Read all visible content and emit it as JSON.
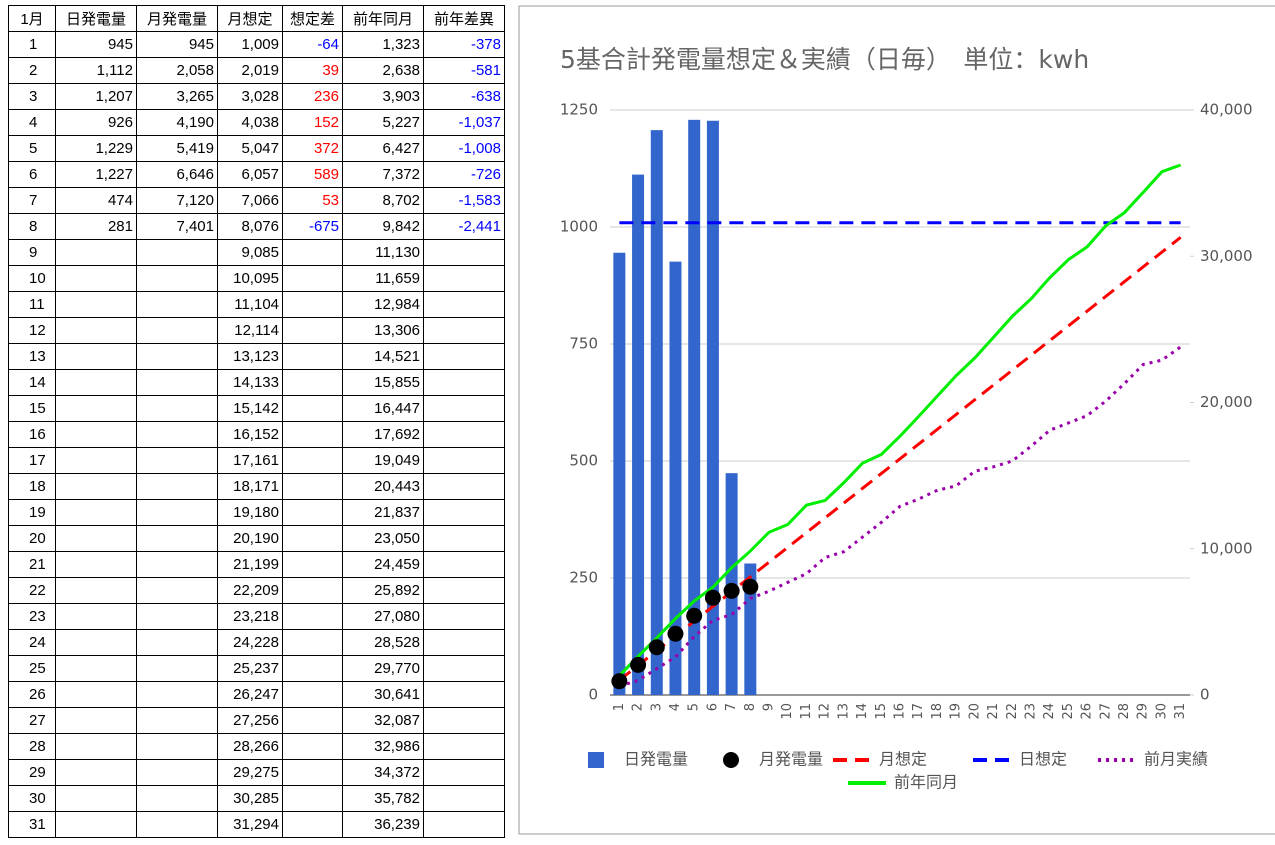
{
  "table": {
    "header": [
      "1月",
      "日発電量",
      "月発電量",
      "月想定",
      "想定差",
      "前年同月",
      "前年差異"
    ],
    "rows": [
      {
        "day": "1",
        "daily": "945",
        "monthly": "945",
        "plan": "1,009",
        "diff": "-64",
        "prev": "1,323",
        "prevdiff": "-378"
      },
      {
        "day": "2",
        "daily": "1,112",
        "monthly": "2,058",
        "plan": "2,019",
        "diff": "39",
        "prev": "2,638",
        "prevdiff": "-581"
      },
      {
        "day": "3",
        "daily": "1,207",
        "monthly": "3,265",
        "plan": "3,028",
        "diff": "236",
        "prev": "3,903",
        "prevdiff": "-638"
      },
      {
        "day": "4",
        "daily": "926",
        "monthly": "4,190",
        "plan": "4,038",
        "diff": "152",
        "prev": "5,227",
        "prevdiff": "-1,037"
      },
      {
        "day": "5",
        "daily": "1,229",
        "monthly": "5,419",
        "plan": "5,047",
        "diff": "372",
        "prev": "6,427",
        "prevdiff": "-1,008"
      },
      {
        "day": "6",
        "daily": "1,227",
        "monthly": "6,646",
        "plan": "6,057",
        "diff": "589",
        "prev": "7,372",
        "prevdiff": "-726"
      },
      {
        "day": "7",
        "daily": "474",
        "monthly": "7,120",
        "plan": "7,066",
        "diff": "53",
        "prev": "8,702",
        "prevdiff": "-1,583"
      },
      {
        "day": "8",
        "daily": "281",
        "monthly": "7,401",
        "plan": "8,076",
        "diff": "-675",
        "prev": "9,842",
        "prevdiff": "-2,441"
      },
      {
        "day": "9",
        "plan": "9,085",
        "prev": "11,130"
      },
      {
        "day": "10",
        "plan": "10,095",
        "prev": "11,659"
      },
      {
        "day": "11",
        "plan": "11,104",
        "prev": "12,984"
      },
      {
        "day": "12",
        "plan": "12,114",
        "prev": "13,306"
      },
      {
        "day": "13",
        "plan": "13,123",
        "prev": "14,521"
      },
      {
        "day": "14",
        "plan": "14,133",
        "prev": "15,855"
      },
      {
        "day": "15",
        "plan": "15,142",
        "prev": "16,447"
      },
      {
        "day": "16",
        "plan": "16,152",
        "prev": "17,692"
      },
      {
        "day": "17",
        "plan": "17,161",
        "prev": "19,049"
      },
      {
        "day": "18",
        "plan": "18,171",
        "prev": "20,443"
      },
      {
        "day": "19",
        "plan": "19,180",
        "prev": "21,837"
      },
      {
        "day": "20",
        "plan": "20,190",
        "prev": "23,050"
      },
      {
        "day": "21",
        "plan": "21,199",
        "prev": "24,459"
      },
      {
        "day": "22",
        "plan": "22,209",
        "prev": "25,892"
      },
      {
        "day": "23",
        "plan": "23,218",
        "prev": "27,080"
      },
      {
        "day": "24",
        "plan": "24,228",
        "prev": "28,528"
      },
      {
        "day": "25",
        "plan": "25,237",
        "prev": "29,770"
      },
      {
        "day": "26",
        "plan": "26,247",
        "prev": "30,641"
      },
      {
        "day": "27",
        "plan": "27,256",
        "prev": "32,087"
      },
      {
        "day": "28",
        "plan": "28,266",
        "prev": "32,986"
      },
      {
        "day": "29",
        "plan": "29,275",
        "prev": "34,372"
      },
      {
        "day": "30",
        "plan": "30,285",
        "prev": "35,782"
      },
      {
        "day": "31",
        "plan": "31,294",
        "prev": "36,239"
      }
    ]
  },
  "chart_data": {
    "type": "combo",
    "title": "5基合計発電量想定＆実績（日毎）　単位：kwh",
    "categories": [
      1,
      2,
      3,
      4,
      5,
      6,
      7,
      8,
      9,
      10,
      11,
      12,
      13,
      14,
      15,
      16,
      17,
      18,
      19,
      20,
      21,
      22,
      23,
      24,
      25,
      26,
      27,
      28,
      29,
      30,
      31
    ],
    "ylim": [
      0,
      1250
    ],
    "yticks": [
      0,
      250,
      500,
      750,
      1000,
      1250
    ],
    "y2lim": [
      0,
      40000
    ],
    "y2ticks": [
      0,
      {
        "value": 10000,
        "label": "10,000"
      },
      {
        "value": 20000,
        "label": "20,000"
      },
      {
        "value": 30000,
        "label": "30,000"
      },
      {
        "value": 40000,
        "label": "40,000"
      }
    ],
    "grid": true,
    "series": [
      {
        "name": "日発電量",
        "type": "bar",
        "color": "#3366cc",
        "values": [
          945,
          1112,
          1207,
          926,
          1229,
          1227,
          474,
          281,
          null,
          null,
          null,
          null,
          null,
          null,
          null,
          null,
          null,
          null,
          null,
          null,
          null,
          null,
          null,
          null,
          null,
          null,
          null,
          null,
          null,
          null,
          null
        ]
      },
      {
        "name": "月発電量",
        "type": "scatter",
        "color": "#000000",
        "axis": "y2",
        "values": [
          945,
          2058,
          3265,
          4190,
          5419,
          6646,
          7120,
          7401,
          null,
          null,
          null,
          null,
          null,
          null,
          null,
          null,
          null,
          null,
          null,
          null,
          null,
          null,
          null,
          null,
          null,
          null,
          null,
          null,
          null,
          null,
          null
        ]
      },
      {
        "name": "月想定",
        "type": "line",
        "dash": "dashed",
        "color": "#ff0000",
        "axis": "y2",
        "values": [
          1009,
          2019,
          3028,
          4038,
          5047,
          6057,
          7066,
          8076,
          9085,
          10095,
          11104,
          12114,
          13123,
          14133,
          15142,
          16152,
          17161,
          18171,
          19180,
          20190,
          21199,
          22209,
          23218,
          24228,
          25237,
          26247,
          27256,
          28266,
          29275,
          30285,
          31294
        ]
      },
      {
        "name": "日想定",
        "type": "line",
        "dash": "dashed",
        "color": "#0000ff",
        "values": [
          1009,
          1009,
          1009,
          1009,
          1009,
          1009,
          1009,
          1009,
          1009,
          1009,
          1009,
          1009,
          1009,
          1009,
          1009,
          1009,
          1009,
          1009,
          1009,
          1009,
          1009,
          1009,
          1009,
          1009,
          1009,
          1009,
          1009,
          1009,
          1009,
          1009,
          1009
        ]
      },
      {
        "name": "前月実績",
        "type": "line",
        "dash": "dotted",
        "color": "#9900aa",
        "axis": "y2",
        "values": [
          600,
          1000,
          1800,
          2600,
          4000,
          5100,
          5500,
          6600,
          7100,
          7700,
          8300,
          9400,
          9800,
          10800,
          11800,
          12900,
          13400,
          14000,
          14300,
          15300,
          15600,
          16000,
          17000,
          18100,
          18600,
          19100,
          20100,
          21300,
          22600,
          22900,
          23800
        ]
      },
      {
        "name": "前年同月",
        "type": "line",
        "color": "#00ee00",
        "axis": "y2",
        "values": [
          1323,
          2638,
          3903,
          5227,
          6427,
          7372,
          8702,
          9842,
          11130,
          11659,
          12984,
          13306,
          14521,
          15855,
          16447,
          17692,
          19049,
          20443,
          21837,
          23050,
          24459,
          25892,
          27080,
          28528,
          29770,
          30641,
          32087,
          32986,
          34372,
          35782,
          36239
        ]
      }
    ]
  }
}
